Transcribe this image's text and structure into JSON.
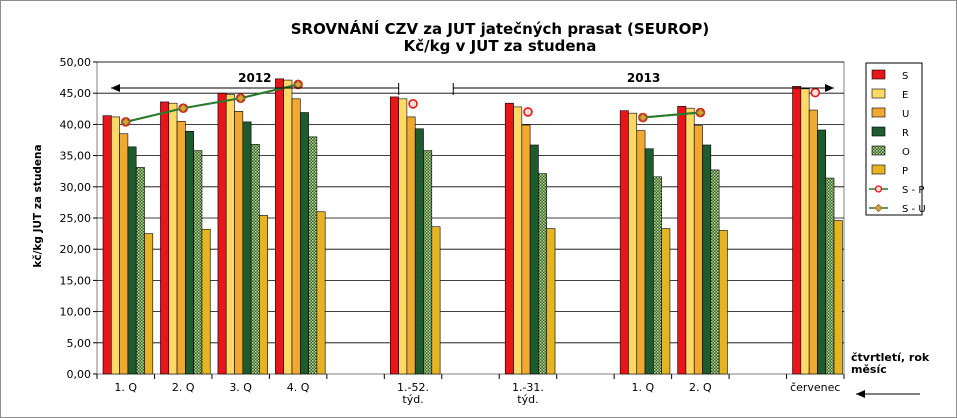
{
  "chart_data": {
    "type": "bar",
    "title": "SROVNÁNÍ  CZV za JUT jatečných prasat (SEUROP)",
    "subtitle": "Kč/kg v JUT za studena",
    "ylabel": "kč/kg  JUT za studena",
    "xlabel": "čtvrtletí, rok\nměsíc",
    "ylim": [
      0,
      50
    ],
    "yticks": [
      "0,00",
      "5,00",
      "10,00",
      "15,00",
      "20,00",
      "25,00",
      "30,00",
      "35,00",
      "40,00",
      "45,00",
      "50,00"
    ],
    "categories": [
      "1. Q",
      "2. Q",
      "3. Q",
      "4. Q",
      "",
      "1.-52.\ntýd.",
      "",
      "1.-31.\ntýd.",
      "",
      "1. Q",
      "2. Q",
      "",
      "červenec"
    ],
    "series": [
      {
        "name": "S",
        "color": "#e8161b",
        "values": [
          41.4,
          43.6,
          45.0,
          47.3,
          null,
          44.4,
          null,
          43.4,
          null,
          42.2,
          42.9,
          null,
          46.1
        ]
      },
      {
        "name": "E",
        "color": "#ffd966",
        "values": [
          41.2,
          43.4,
          44.8,
          47.1,
          null,
          44.1,
          null,
          42.8,
          null,
          41.8,
          42.6,
          null,
          45.7
        ]
      },
      {
        "name": "U",
        "color": "#f0a830",
        "values": [
          38.5,
          40.5,
          42.1,
          44.1,
          null,
          41.2,
          null,
          39.9,
          null,
          39.0,
          39.8,
          null,
          42.3
        ]
      },
      {
        "name": "R",
        "color": "#1e5c2f",
        "values": [
          36.4,
          38.9,
          40.4,
          41.9,
          null,
          39.3,
          null,
          36.7,
          null,
          36.1,
          36.7,
          null,
          39.1
        ]
      },
      {
        "name": "O",
        "color": "#7aa05c",
        "pattern": true,
        "values": [
          33.1,
          35.8,
          36.8,
          38.0,
          null,
          35.8,
          null,
          32.1,
          null,
          31.6,
          32.7,
          null,
          31.4
        ]
      },
      {
        "name": "P",
        "color": "#e6b422",
        "values": [
          22.5,
          23.2,
          25.4,
          26.0,
          null,
          23.6,
          null,
          23.3,
          null,
          23.3,
          23.0,
          null,
          24.6
        ]
      }
    ],
    "lines": [
      {
        "name": "S - P",
        "color": "#e8161b",
        "marker": "circle",
        "values": [
          40.4,
          42.6,
          44.2,
          46.4,
          null,
          43.3,
          null,
          42.0,
          null,
          41.1,
          41.9,
          null,
          45.1
        ]
      },
      {
        "name": "S - U",
        "color": "#2d7a2d",
        "marker": "diamond",
        "values": [
          40.4,
          42.6,
          44.2,
          46.4,
          null,
          null,
          null,
          null,
          null,
          41.1,
          41.9,
          null,
          null
        ]
      }
    ],
    "annotations": [
      {
        "label": "2012"
      },
      {
        "label": "2013"
      }
    ],
    "legend": "right",
    "grid": true
  }
}
